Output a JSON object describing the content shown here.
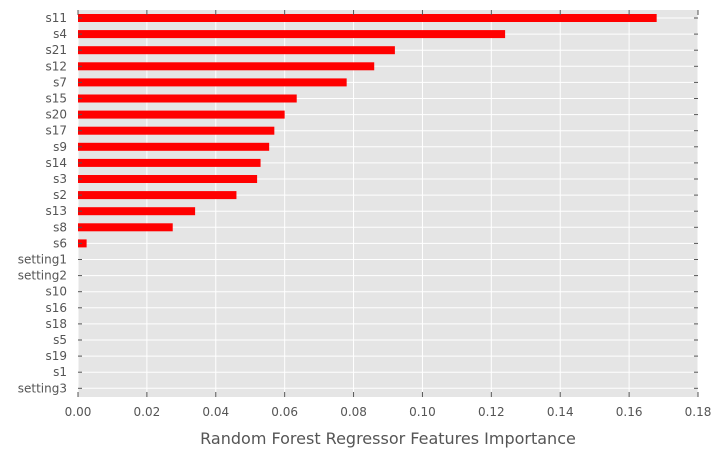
{
  "chart_data": {
    "type": "bar",
    "orientation": "horizontal",
    "xlabel": "Random Forest Regressor Features Importance",
    "ylabel": "",
    "xlim": [
      0,
      0.18
    ],
    "xticks": [
      "0.00",
      "0.02",
      "0.04",
      "0.06",
      "0.08",
      "0.10",
      "0.12",
      "0.14",
      "0.16",
      "0.18"
    ],
    "grid": true,
    "legend": "none",
    "colors": {
      "bar": "#ff0000",
      "plot_background": "#e5e5e5",
      "grid": "#ffffff",
      "text": "#555555"
    },
    "categories": [
      "s11",
      "s4",
      "s21",
      "s12",
      "s7",
      "s15",
      "s20",
      "s17",
      "s9",
      "s14",
      "s3",
      "s2",
      "s13",
      "s8",
      "s6",
      "setting1",
      "setting2",
      "s10",
      "s16",
      "s18",
      "s5",
      "s19",
      "s1",
      "setting3"
    ],
    "values": [
      0.168,
      0.124,
      0.092,
      0.086,
      0.078,
      0.0635,
      0.06,
      0.057,
      0.0555,
      0.053,
      0.052,
      0.046,
      0.034,
      0.0275,
      0.0025,
      0,
      0,
      0,
      0,
      0,
      0,
      0,
      0,
      0
    ]
  }
}
